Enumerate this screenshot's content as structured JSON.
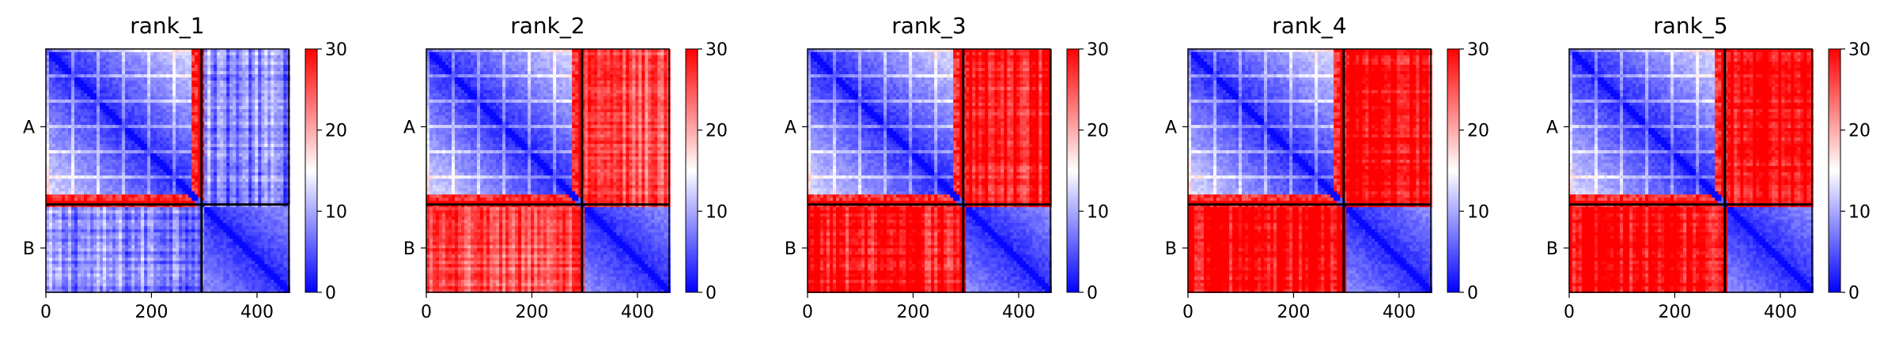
{
  "colors": {
    "low": "#0000ff",
    "mid": "#ffffff",
    "high": "#ff0000",
    "divider": "#000000"
  },
  "chart_data": [
    {
      "type": "heatmap",
      "title": "rank_1",
      "x_ticks": [
        "0",
        "200",
        "400"
      ],
      "y_ticks": [
        "A",
        "B"
      ],
      "colorbar_ticks": [
        "0",
        "10",
        "20",
        "30"
      ],
      "colorbar_range": [
        0,
        30
      ],
      "x_range": [
        0,
        460
      ],
      "chain_boundary": 295,
      "interchain_level": 8
    },
    {
      "type": "heatmap",
      "title": "rank_2",
      "x_ticks": [
        "0",
        "200",
        "400"
      ],
      "y_ticks": [
        "A",
        "B"
      ],
      "colorbar_ticks": [
        "0",
        "10",
        "20",
        "30"
      ],
      "colorbar_range": [
        0,
        30
      ],
      "x_range": [
        0,
        460
      ],
      "chain_boundary": 295,
      "interchain_level": 25
    },
    {
      "type": "heatmap",
      "title": "rank_3",
      "x_ticks": [
        "0",
        "200",
        "400"
      ],
      "y_ticks": [
        "A",
        "B"
      ],
      "colorbar_ticks": [
        "0",
        "10",
        "20",
        "30"
      ],
      "colorbar_range": [
        0,
        30
      ],
      "x_range": [
        0,
        460
      ],
      "chain_boundary": 295,
      "interchain_level": 29
    },
    {
      "type": "heatmap",
      "title": "rank_4",
      "x_ticks": [
        "0",
        "200",
        "400"
      ],
      "y_ticks": [
        "A",
        "B"
      ],
      "colorbar_ticks": [
        "0",
        "10",
        "20",
        "30"
      ],
      "colorbar_range": [
        0,
        30
      ],
      "x_range": [
        0,
        460
      ],
      "chain_boundary": 295,
      "interchain_level": 30
    },
    {
      "type": "heatmap",
      "title": "rank_5",
      "x_ticks": [
        "0",
        "200",
        "400"
      ],
      "y_ticks": [
        "A",
        "B"
      ],
      "colorbar_ticks": [
        "0",
        "10",
        "20",
        "30"
      ],
      "colorbar_range": [
        0,
        30
      ],
      "x_range": [
        0,
        460
      ],
      "chain_boundary": 295,
      "interchain_level": 30
    }
  ]
}
